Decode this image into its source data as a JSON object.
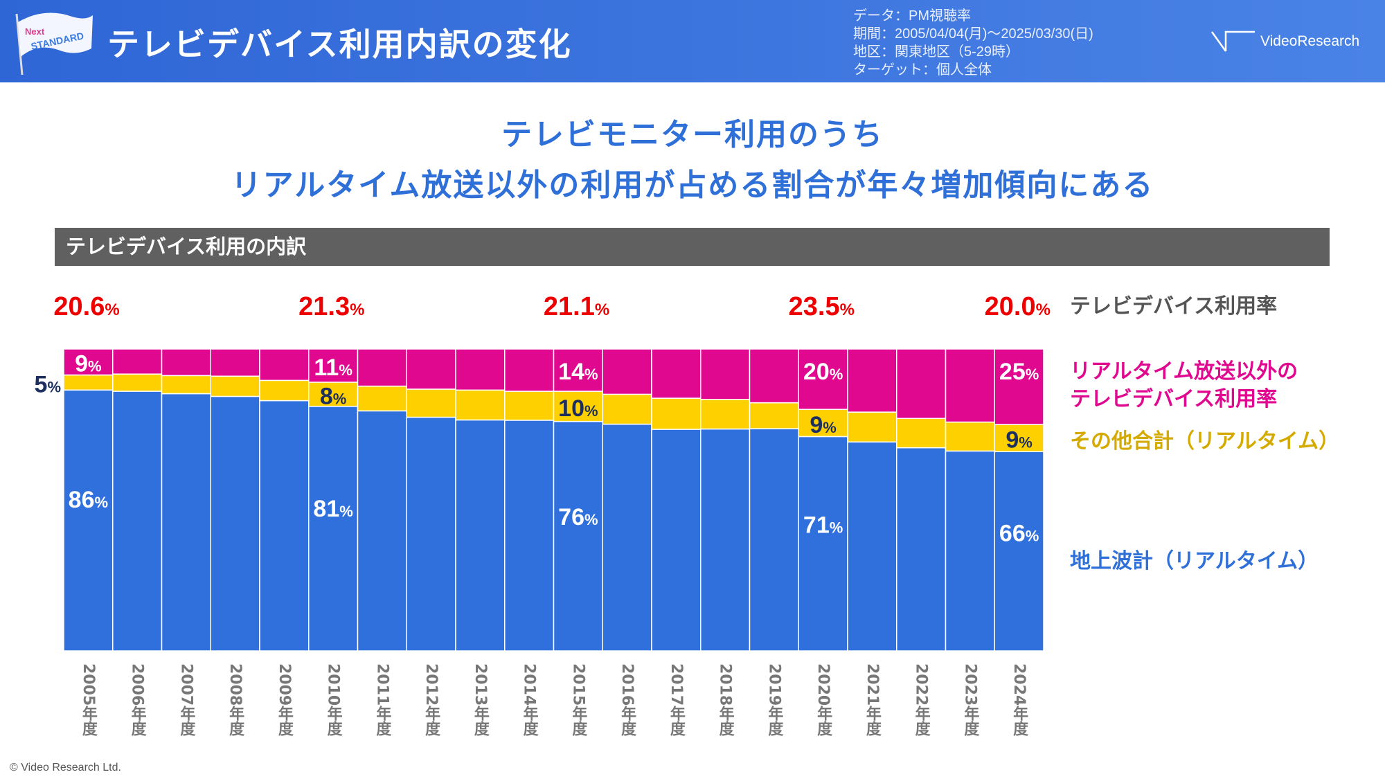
{
  "header": {
    "title": "テレビデバイス利用内訳の変化",
    "logo_flag_text": "Next STANDARD",
    "meta": [
      "データ：PM視聴率",
      "期間：2005/04/04(月)～2025/03/30(日)",
      "地区：関東地区（5-29時）",
      "ターゲット：個人全体"
    ],
    "brand": "VideoResearch"
  },
  "headline": [
    "テレビモニター利用のうち",
    "リアルタイム放送以外の利用が占める割合が年々増加傾向にある"
  ],
  "section_title": "テレビデバイス利用の内訳",
  "footer": "© Video Research Ltd.",
  "colors": {
    "terrestrial": "#3070dd",
    "other_realtime": "#ffd000",
    "non_realtime": "#e0088f",
    "rate": "#ee0000"
  },
  "chart_data": {
    "type": "stacked-bar-100",
    "categories": [
      "2005年度",
      "2006年度",
      "2007年度",
      "2008年度",
      "2009年度",
      "2010年度",
      "2011年度",
      "2012年度",
      "2013年度",
      "2014年度",
      "2015年度",
      "2016年度",
      "2017年度",
      "2018年度",
      "2019年度",
      "2020年度",
      "2021年度",
      "2022年度",
      "2023年度",
      "2024年度"
    ],
    "series": [
      {
        "name": "地上波計（リアルタイム）",
        "values": [
          86.4,
          86.0,
          85.2,
          84.3,
          82.9,
          81,
          79.5,
          77.4,
          76.5,
          76.4,
          76,
          75.1,
          73.4,
          73.5,
          73.6,
          71,
          69.2,
          67.3,
          66.2,
          66
        ]
      },
      {
        "name": "その他合計（リアルタイム）",
        "values": [
          5,
          5.7,
          6.0,
          6.7,
          6.7,
          8,
          8.2,
          9.3,
          9.9,
          9.6,
          10,
          9.9,
          10.3,
          9.8,
          8.6,
          9,
          9.9,
          9.7,
          9.6,
          9
        ]
      },
      {
        "name": "リアルタイム放送以外の\nテレビデバイス利用率",
        "values": [
          8.6,
          8.3,
          8.8,
          9.0,
          10.4,
          11,
          12.3,
          13.3,
          13.6,
          14.0,
          14,
          15.0,
          16.3,
          16.7,
          17.8,
          20,
          20.9,
          23.0,
          24.2,
          25
        ]
      }
    ],
    "data_labels": {
      "2005年度": [
        "86",
        "5",
        "9"
      ],
      "2010年度": [
        "81",
        "8",
        "11"
      ],
      "2015年度": [
        "76",
        "10",
        "14"
      ],
      "2020年度": [
        "71",
        "9",
        "20"
      ],
      "2024年度": [
        "66",
        "9",
        "25"
      ]
    },
    "percent_sign": "%",
    "usage_rate": {
      "label": "テレビデバイス利用率",
      "values": {
        "2005年度": "20.6",
        "2010年度": "21.3",
        "2015年度": "21.1",
        "2020年度": "23.5",
        "2024年度": "20.0"
      }
    },
    "ylim": [
      0,
      100
    ]
  }
}
